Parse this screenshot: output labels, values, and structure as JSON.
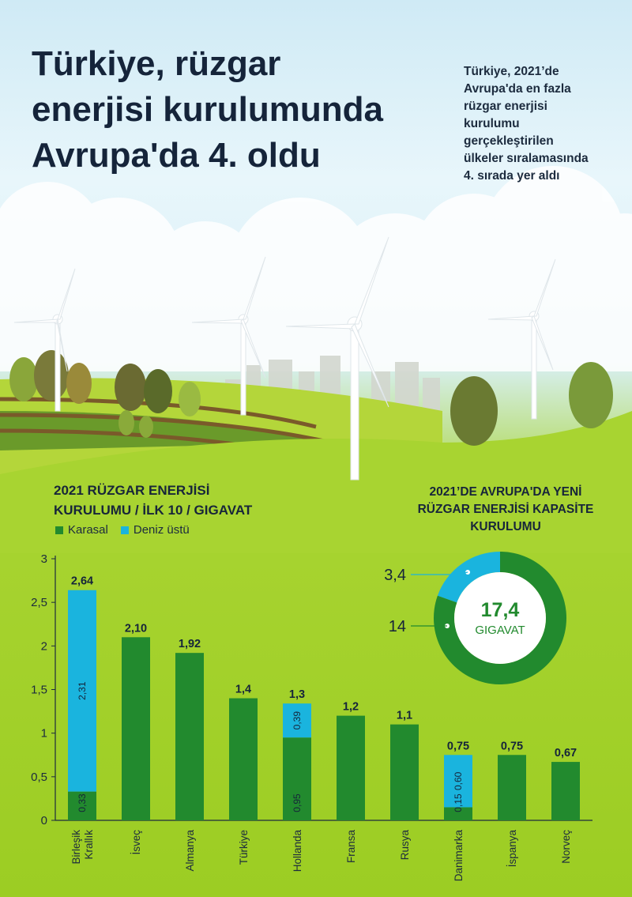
{
  "headline": [
    "Türkiye, rüzgar",
    "enerjisi kurulumunda",
    "Avrupa'da 4. oldu"
  ],
  "intro": [
    "Türkiye, 2021’de",
    "Avrupa'da en fazla",
    "rüzgar enerjisi",
    "kurulumu",
    "gerçekleştirilen",
    "ülkeler sıralamasında",
    "4. sırada yer aldı"
  ],
  "colors": {
    "onshore": "#228a2e",
    "offshore": "#1ab4de",
    "axis": "#1c2b3e",
    "sky": "#d9f0f7",
    "grass": "#9ccd23"
  },
  "scene_icons": [
    "wind-turbine-icon",
    "tree-icon",
    "city-skyline-icon",
    "cloud-icon",
    "field-icon"
  ],
  "chart_data": [
    {
      "type": "bar",
      "stacked": true,
      "title": [
        "2021 RÜZGAR ENERJİSİ",
        "KURULUMU / İLK 10 / GIGAVAT"
      ],
      "legend": {
        "placement": "top-left",
        "entries": [
          "Karasal",
          "Deniz üstü"
        ]
      },
      "categories": [
        "Birleşik Krallık",
        "İsveç",
        "Almanya",
        "Türkiye",
        "Hollanda",
        "Fransa",
        "Rusya",
        "Danimarka",
        "İspanya",
        "Norveç"
      ],
      "totals": [
        "2,64",
        "2,10",
        "1,92",
        "1,4",
        "1,3",
        "1,2",
        "1,1",
        "0,75",
        "0,75",
        "0,67"
      ],
      "series": [
        {
          "name": "Karasal",
          "values": [
            0.33,
            2.1,
            1.92,
            1.4,
            0.95,
            1.2,
            1.1,
            0.15,
            0.75,
            0.67
          ],
          "labels": [
            "0,33",
            "",
            "",
            "",
            "0,95",
            "",
            "",
            "0,15",
            "",
            ""
          ]
        },
        {
          "name": "Deniz üstü",
          "values": [
            2.31,
            0,
            0,
            0,
            0.39,
            0,
            0,
            0.6,
            0,
            0
          ],
          "labels": [
            "2,31",
            "",
            "",
            "",
            "0,39",
            "",
            "",
            "0,60",
            "",
            ""
          ]
        }
      ],
      "yticks": [
        "0",
        "0,5",
        "1",
        "1,5",
        "2",
        "2,5",
        "3"
      ],
      "ylim": [
        0,
        3
      ],
      "grid": false
    },
    {
      "type": "pie",
      "donut": true,
      "title": [
        "2021’DE AVRUPA'DA YENİ",
        "RÜZGAR ENERJİSİ KAPASİTE",
        "KURULUMU"
      ],
      "slices": [
        {
          "value": 3.4,
          "label": "3,4",
          "series": "Deniz üstü"
        },
        {
          "value": 14,
          "label": "14",
          "series": "Karasal"
        }
      ],
      "center_value": "17,4",
      "center_unit": "GIGAVAT"
    }
  ]
}
